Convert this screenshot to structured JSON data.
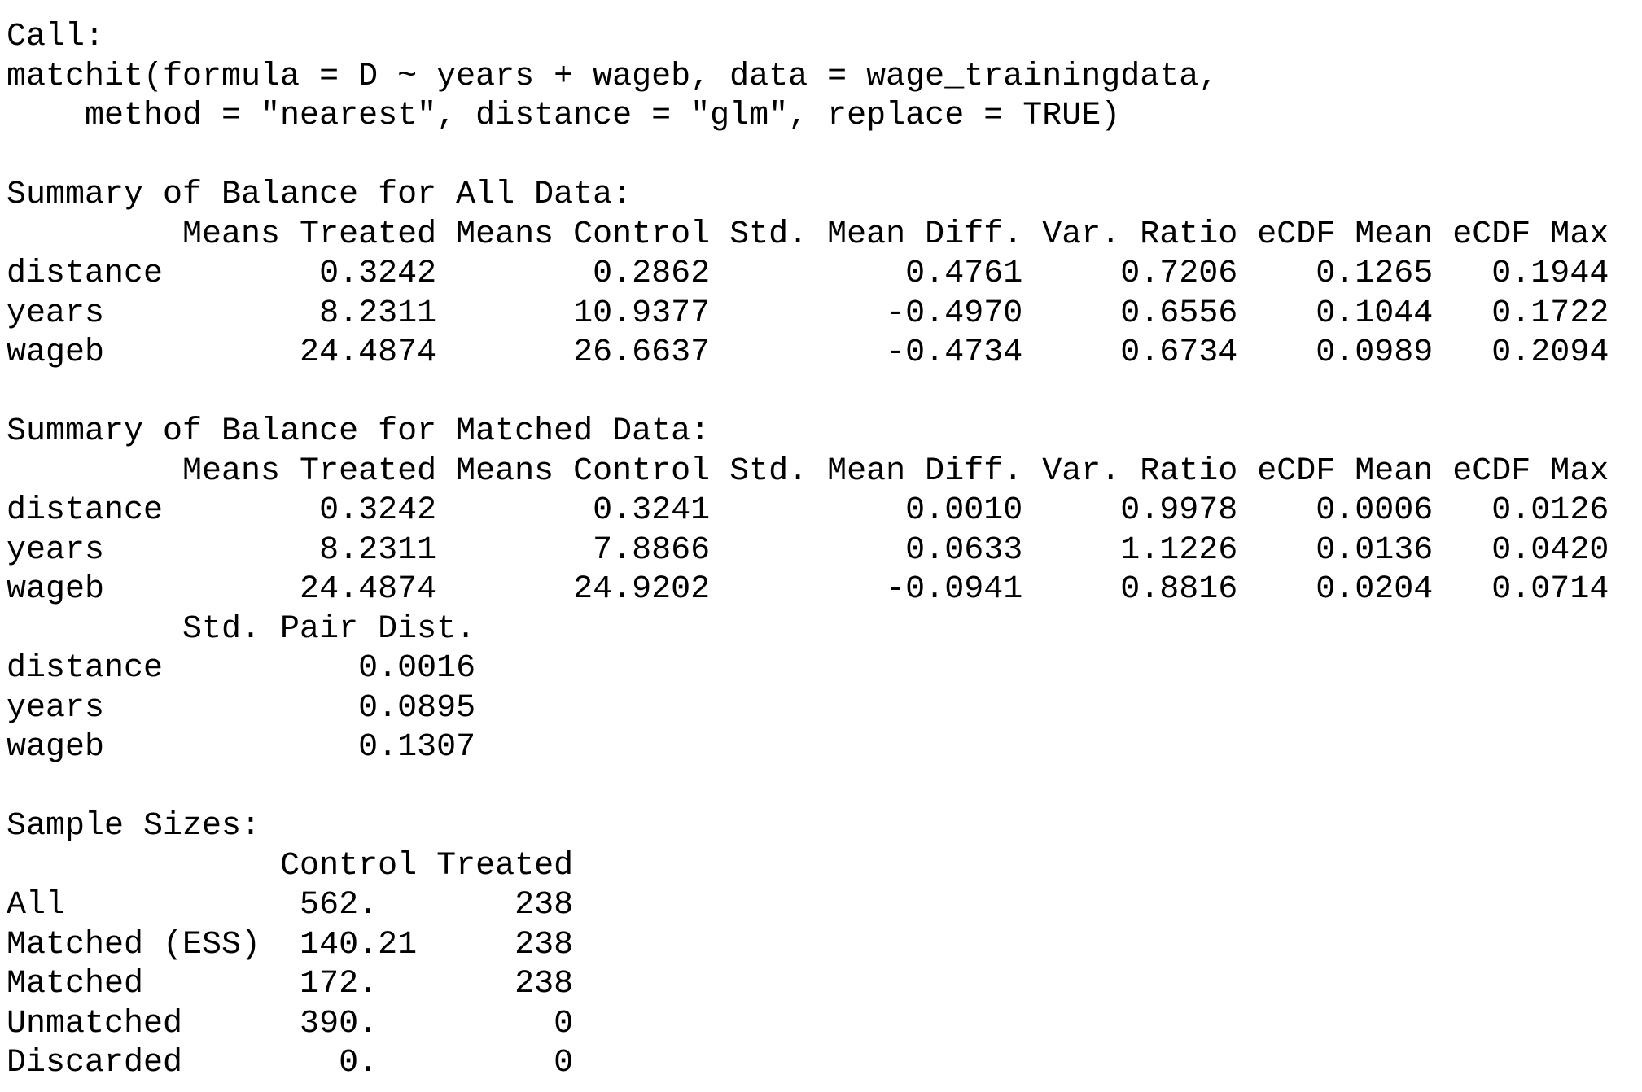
{
  "console_lines": [
    "Call:",
    "matchit(formula = D ~ years + wageb, data = wage_trainingdata, ",
    "    method = \"nearest\", distance = \"glm\", replace = TRUE)",
    "",
    "Summary of Balance for All Data:",
    "         Means Treated Means Control Std. Mean Diff. Var. Ratio eCDF Mean eCDF Max",
    "distance        0.3242        0.2862          0.4761     0.7206    0.1265   0.1944",
    "years           8.2311       10.9377         -0.4970     0.6556    0.1044   0.1722",
    "wageb          24.4874       26.6637         -0.4734     0.6734    0.0989   0.2094",
    "",
    "Summary of Balance for Matched Data:",
    "         Means Treated Means Control Std. Mean Diff. Var. Ratio eCDF Mean eCDF Max",
    "distance        0.3242        0.3241          0.0010     0.9978    0.0006   0.0126",
    "years           8.2311        7.8866          0.0633     1.1226    0.0136   0.0420",
    "wageb          24.4874       24.9202         -0.0941     0.8816    0.0204   0.0714",
    "         Std. Pair Dist.",
    "distance          0.0016",
    "years             0.0895",
    "wageb             0.1307",
    "",
    "Sample Sizes:",
    "              Control Treated",
    "All            562.       238",
    "Matched (ESS)  140.21     238",
    "Matched        172.       238",
    "Unmatched      390.         0",
    "Discarded        0.         0"
  ]
}
